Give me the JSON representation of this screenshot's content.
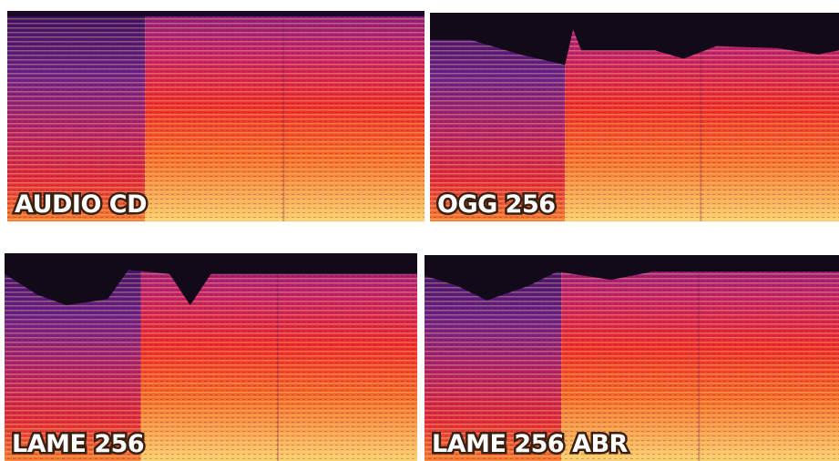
{
  "panels": [
    {
      "label": "AUDIO CD"
    },
    {
      "label": "OGG 256"
    },
    {
      "label": "LAME 256"
    },
    {
      "label": "LAME 256 ABR"
    }
  ]
}
